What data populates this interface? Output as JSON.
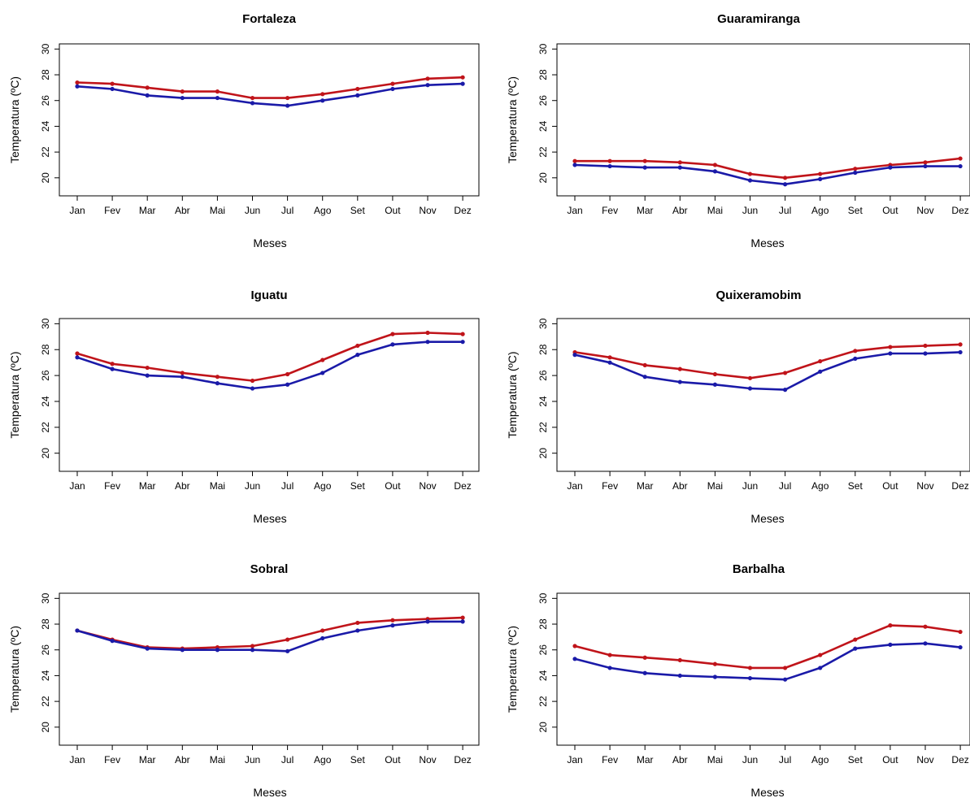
{
  "axis_text": {
    "xlabel": "Meses",
    "ylabel": "Temperatura (ºC)"
  },
  "colors": {
    "red_series": "#c0141a",
    "blue_series": "#1a1aa8",
    "axes": "#000000"
  },
  "chart_data": [
    {
      "type": "line",
      "title": "Fortaleza",
      "xlabel": "Meses",
      "ylabel": "Temperatura (ºC)",
      "categories": [
        "Jan",
        "Fev",
        "Mar",
        "Abr",
        "Mai",
        "Jun",
        "Jul",
        "Ago",
        "Set",
        "Out",
        "Nov",
        "Dez"
      ],
      "yticks": [
        20,
        22,
        24,
        26,
        28,
        30
      ],
      "ylim": [
        18.6,
        30.4
      ],
      "grid": false,
      "series": [
        {
          "color": "#c0141a",
          "values": [
            27.4,
            27.3,
            27.0,
            26.7,
            26.7,
            26.2,
            26.2,
            26.5,
            26.9,
            27.3,
            27.7,
            27.8
          ]
        },
        {
          "color": "#1a1aa8",
          "values": [
            27.1,
            26.9,
            26.4,
            26.2,
            26.2,
            25.8,
            25.6,
            26.0,
            26.4,
            26.9,
            27.2,
            27.3
          ]
        }
      ]
    },
    {
      "type": "line",
      "title": "Guaramiranga",
      "xlabel": "Meses",
      "ylabel": "Temperatura (ºC)",
      "categories": [
        "Jan",
        "Fev",
        "Mar",
        "Abr",
        "Mai",
        "Jun",
        "Jul",
        "Ago",
        "Set",
        "Out",
        "Nov",
        "Dez"
      ],
      "yticks": [
        20,
        22,
        24,
        26,
        28,
        30
      ],
      "ylim": [
        18.6,
        30.4
      ],
      "grid": false,
      "series": [
        {
          "color": "#c0141a",
          "values": [
            21.3,
            21.3,
            21.3,
            21.2,
            21.0,
            20.3,
            20.0,
            20.3,
            20.7,
            21.0,
            21.2,
            21.5
          ]
        },
        {
          "color": "#1a1aa8",
          "values": [
            21.0,
            20.9,
            20.8,
            20.8,
            20.5,
            19.8,
            19.5,
            19.9,
            20.4,
            20.8,
            20.9,
            20.9
          ]
        }
      ]
    },
    {
      "type": "line",
      "title": "Iguatu",
      "xlabel": "Meses",
      "ylabel": "Temperatura (ºC)",
      "categories": [
        "Jan",
        "Fev",
        "Mar",
        "Abr",
        "Mai",
        "Jun",
        "Jul",
        "Ago",
        "Set",
        "Out",
        "Nov",
        "Dez"
      ],
      "yticks": [
        20,
        22,
        24,
        26,
        28,
        30
      ],
      "ylim": [
        18.6,
        30.4
      ],
      "grid": false,
      "series": [
        {
          "color": "#c0141a",
          "values": [
            27.7,
            26.9,
            26.6,
            26.2,
            25.9,
            25.6,
            26.1,
            27.2,
            28.3,
            29.2,
            29.3,
            29.2
          ]
        },
        {
          "color": "#1a1aa8",
          "values": [
            27.4,
            26.5,
            26.0,
            25.9,
            25.4,
            25.0,
            25.3,
            26.2,
            27.6,
            28.4,
            28.6,
            28.6
          ]
        }
      ]
    },
    {
      "type": "line",
      "title": "Quixeramobim",
      "xlabel": "Meses",
      "ylabel": "Temperatura (ºC)",
      "categories": [
        "Jan",
        "Fev",
        "Mar",
        "Abr",
        "Mai",
        "Jun",
        "Jul",
        "Ago",
        "Set",
        "Out",
        "Nov",
        "Dez"
      ],
      "yticks": [
        20,
        22,
        24,
        26,
        28,
        30
      ],
      "ylim": [
        18.6,
        30.4
      ],
      "grid": false,
      "series": [
        {
          "color": "#c0141a",
          "values": [
            27.8,
            27.4,
            26.8,
            26.5,
            26.1,
            25.8,
            26.2,
            27.1,
            27.9,
            28.2,
            28.3,
            28.4
          ]
        },
        {
          "color": "#1a1aa8",
          "values": [
            27.6,
            27.0,
            25.9,
            25.5,
            25.3,
            25.0,
            24.9,
            26.3,
            27.3,
            27.7,
            27.7,
            27.8
          ]
        }
      ]
    },
    {
      "type": "line",
      "title": "Sobral",
      "xlabel": "Meses",
      "ylabel": "Temperatura (ºC)",
      "categories": [
        "Jan",
        "Fev",
        "Mar",
        "Abr",
        "Mai",
        "Jun",
        "Jul",
        "Ago",
        "Set",
        "Out",
        "Nov",
        "Dez"
      ],
      "yticks": [
        20,
        22,
        24,
        26,
        28,
        30
      ],
      "ylim": [
        18.6,
        30.4
      ],
      "grid": false,
      "series": [
        {
          "color": "#c0141a",
          "values": [
            27.5,
            26.8,
            26.2,
            26.1,
            26.2,
            26.3,
            26.8,
            27.5,
            28.1,
            28.3,
            28.4,
            28.5
          ]
        },
        {
          "color": "#1a1aa8",
          "values": [
            27.5,
            26.7,
            26.1,
            26.0,
            26.0,
            26.0,
            25.9,
            26.9,
            27.5,
            27.9,
            28.2,
            28.2
          ]
        }
      ]
    },
    {
      "type": "line",
      "title": "Barbalha",
      "xlabel": "Meses",
      "ylabel": "Temperatura (ºC)",
      "categories": [
        "Jan",
        "Fev",
        "Mar",
        "Abr",
        "Mai",
        "Jun",
        "Jul",
        "Ago",
        "Set",
        "Out",
        "Nov",
        "Dez"
      ],
      "yticks": [
        20,
        22,
        24,
        26,
        28,
        30
      ],
      "ylim": [
        18.6,
        30.4
      ],
      "grid": false,
      "series": [
        {
          "color": "#c0141a",
          "values": [
            26.3,
            25.6,
            25.4,
            25.2,
            24.9,
            24.6,
            24.6,
            25.6,
            26.8,
            27.9,
            27.8,
            27.4
          ]
        },
        {
          "color": "#1a1aa8",
          "values": [
            25.3,
            24.6,
            24.2,
            24.0,
            23.9,
            23.8,
            23.7,
            24.6,
            26.1,
            26.4,
            26.5,
            26.2
          ]
        }
      ]
    }
  ]
}
